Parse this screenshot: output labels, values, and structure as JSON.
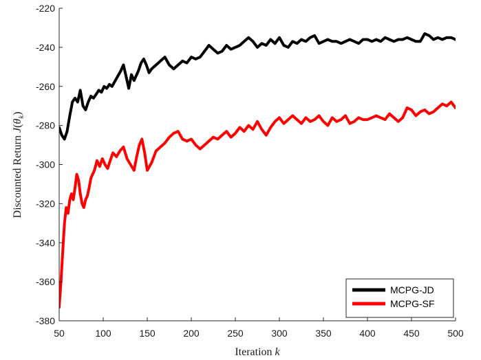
{
  "chart_data": {
    "type": "line",
    "xlabel": "Iteration k",
    "xlabel_parts": {
      "prefix": "Iteration ",
      "var": "k"
    },
    "ylabel": "Discounted Return J(θ_k)",
    "ylabel_parts": {
      "prefix": "Discounted Return ",
      "func": "J",
      "theta": "θ",
      "sub": "k"
    },
    "xlim": [
      50,
      500
    ],
    "ylim": [
      -380,
      -220
    ],
    "x_ticks": [
      50,
      100,
      150,
      200,
      250,
      300,
      350,
      400,
      450,
      500
    ],
    "y_ticks": [
      -220,
      -240,
      -260,
      -280,
      -300,
      -320,
      -340,
      -360,
      -380
    ],
    "grid": false,
    "legend_position": "bottom-right",
    "series": [
      {
        "name": "MCPG-JD",
        "color": "#000000",
        "x": [
          50,
          53,
          56,
          59,
          62,
          65,
          68,
          71,
          74,
          77,
          80,
          83,
          86,
          89,
          92,
          95,
          98,
          101,
          104,
          107,
          110,
          115,
          120,
          123,
          126,
          129,
          132,
          135,
          140,
          143,
          146,
          149,
          152,
          155,
          160,
          165,
          170,
          175,
          180,
          185,
          190,
          195,
          200,
          205,
          210,
          215,
          220,
          225,
          230,
          235,
          240,
          245,
          250,
          255,
          260,
          265,
          270,
          275,
          280,
          285,
          290,
          295,
          300,
          305,
          310,
          315,
          320,
          325,
          330,
          335,
          340,
          345,
          350,
          355,
          360,
          365,
          370,
          375,
          380,
          385,
          390,
          395,
          400,
          405,
          410,
          415,
          420,
          425,
          430,
          435,
          440,
          445,
          450,
          455,
          460,
          465,
          470,
          475,
          480,
          485,
          490,
          495,
          500
        ],
        "y": [
          -281,
          -285,
          -287,
          -283,
          -275,
          -268,
          -266,
          -268,
          -262,
          -270,
          -272,
          -268,
          -265,
          -266,
          -264,
          -262,
          -263,
          -260,
          -261,
          -259,
          -260,
          -256,
          -252,
          -249,
          -255,
          -261,
          -254,
          -257,
          -252,
          -248,
          -246,
          -249,
          -253,
          -251,
          -249,
          -247,
          -245,
          -249,
          -251,
          -249,
          -247,
          -248,
          -245,
          -246,
          -245,
          -242,
          -239,
          -241,
          -243,
          -242,
          -239,
          -241,
          -240,
          -239,
          -237,
          -235,
          -237,
          -240,
          -238,
          -239,
          -236,
          -238,
          -235,
          -239,
          -240,
          -237,
          -238,
          -236,
          -237,
          -235,
          -234,
          -238,
          -237,
          -236,
          -237,
          -237,
          -238,
          -237,
          -236,
          -237,
          -238,
          -236,
          -236,
          -237,
          -236,
          -237,
          -235,
          -236,
          -237,
          -236,
          -236,
          -235,
          -236,
          -237,
          -237,
          -233,
          -234,
          -236,
          -235,
          -236,
          -235,
          -235,
          -236
        ]
      },
      {
        "name": "MCPG-SF",
        "color": "#ff0000",
        "x": [
          50,
          52,
          54,
          56,
          58,
          60,
          62,
          64,
          66,
          68,
          70,
          72,
          74,
          76,
          78,
          80,
          82,
          84,
          86,
          88,
          90,
          93,
          96,
          99,
          102,
          105,
          108,
          111,
          115,
          119,
          123,
          127,
          131,
          135,
          138,
          141,
          144,
          147,
          150,
          155,
          160,
          165,
          170,
          175,
          180,
          185,
          190,
          195,
          200,
          205,
          210,
          215,
          220,
          225,
          230,
          235,
          240,
          245,
          250,
          255,
          260,
          265,
          270,
          275,
          280,
          285,
          290,
          295,
          300,
          305,
          310,
          315,
          320,
          325,
          330,
          335,
          340,
          345,
          350,
          355,
          360,
          365,
          370,
          375,
          380,
          385,
          390,
          395,
          400,
          405,
          410,
          415,
          420,
          425,
          430,
          435,
          440,
          445,
          450,
          455,
          460,
          465,
          470,
          475,
          480,
          485,
          490,
          495,
          500
        ],
        "y": [
          -373,
          -360,
          -345,
          -330,
          -322,
          -325,
          -318,
          -315,
          -318,
          -312,
          -305,
          -308,
          -315,
          -320,
          -322,
          -318,
          -316,
          -312,
          -307,
          -305,
          -303,
          -298,
          -301,
          -297,
          -300,
          -302,
          -298,
          -294,
          -296,
          -293,
          -291,
          -297,
          -300,
          -303,
          -296,
          -290,
          -287,
          -294,
          -303,
          -299,
          -293,
          -291,
          -289,
          -286,
          -284,
          -283,
          -287,
          -288,
          -287,
          -290,
          -292,
          -290,
          -288,
          -286,
          -287,
          -285,
          -283,
          -286,
          -284,
          -281,
          -283,
          -280,
          -282,
          -278,
          -282,
          -285,
          -281,
          -278,
          -276,
          -279,
          -277,
          -275,
          -277,
          -279,
          -276,
          -278,
          -277,
          -275,
          -278,
          -280,
          -276,
          -278,
          -277,
          -275,
          -279,
          -278,
          -276,
          -277,
          -277,
          -276,
          -275,
          -276,
          -277,
          -274,
          -276,
          -278,
          -276,
          -271,
          -272,
          -275,
          -273,
          -272,
          -274,
          -273,
          -271,
          -269,
          -270,
          -268,
          -271
        ]
      }
    ]
  }
}
